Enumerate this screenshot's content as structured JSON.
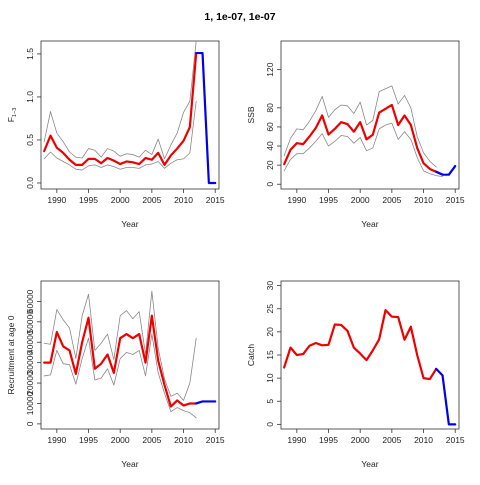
{
  "page": {
    "title": "1, 1e-07, 1e-07"
  },
  "colors": {
    "fit": "#ee0000",
    "projection": "#0000ee",
    "bounds": "#888888",
    "axis": "#333333"
  },
  "chart_data": [
    {
      "id": "fbar",
      "type": "line",
      "title": "",
      "xlabel": "Year",
      "ylabel": "F",
      "ylabel_subscript": "1−3",
      "xlim": [
        1987.5,
        2015.6
      ],
      "ylim": [
        -0.07,
        1.65
      ],
      "xticks": [
        1990,
        1995,
        2000,
        2005,
        2010,
        2015
      ],
      "yticks": [
        0.0,
        0.5,
        1.0,
        1.5
      ],
      "ytick_labels": [
        "0.0",
        "0.5",
        "1.0",
        "1.5"
      ],
      "grid": false,
      "series": [
        {
          "role": "upper",
          "x": [
            1988,
            1989,
            1990,
            1991,
            1992,
            1993,
            1994,
            1995,
            1996,
            1997,
            1998,
            1999,
            2000,
            2001,
            2002,
            2003,
            2004,
            2005,
            2006,
            2007,
            2008,
            2009,
            2010,
            2011,
            2012
          ],
          "values": [
            0.48,
            0.83,
            0.58,
            0.48,
            0.36,
            0.3,
            0.29,
            0.4,
            0.38,
            0.3,
            0.4,
            0.37,
            0.31,
            0.34,
            0.33,
            0.3,
            0.38,
            0.33,
            0.51,
            0.28,
            0.44,
            0.58,
            0.82,
            0.95,
            1.65
          ]
        },
        {
          "role": "lower",
          "x": [
            1988,
            1989,
            1990,
            1991,
            1992,
            1993,
            1994,
            1995,
            1996,
            1997,
            1998,
            1999,
            2000,
            2001,
            2002,
            2003,
            2004,
            2005,
            2006,
            2007,
            2008,
            2009,
            2010,
            2011,
            2012
          ],
          "values": [
            0.28,
            0.36,
            0.29,
            0.25,
            0.21,
            0.16,
            0.15,
            0.2,
            0.21,
            0.18,
            0.21,
            0.19,
            0.16,
            0.18,
            0.18,
            0.17,
            0.21,
            0.22,
            0.25,
            0.17,
            0.23,
            0.27,
            0.28,
            0.35,
            0.95
          ]
        },
        {
          "role": "estimate",
          "x": [
            1988,
            1989,
            1990,
            1991,
            1992,
            1993,
            1994,
            1995,
            1996,
            1997,
            1998,
            1999,
            2000,
            2001,
            2002,
            2003,
            2004,
            2005,
            2006,
            2007,
            2008,
            2009,
            2010,
            2011,
            2012
          ],
          "values": [
            0.37,
            0.55,
            0.41,
            0.35,
            0.27,
            0.21,
            0.21,
            0.28,
            0.28,
            0.23,
            0.29,
            0.26,
            0.22,
            0.25,
            0.24,
            0.22,
            0.29,
            0.27,
            0.35,
            0.21,
            0.32,
            0.4,
            0.49,
            0.65,
            1.51
          ]
        },
        {
          "role": "projection",
          "x": [
            2012,
            2013,
            2014,
            2015
          ],
          "values": [
            1.51,
            1.51,
            0.0,
            0.0
          ]
        }
      ]
    },
    {
      "id": "ssb",
      "type": "line",
      "title": "",
      "xlabel": "Year",
      "ylabel": "SSB",
      "ylabel_subscript": "",
      "xlim": [
        1987.5,
        2015.6
      ],
      "ylim": [
        -5,
        150
      ],
      "xticks": [
        1990,
        1995,
        2000,
        2005,
        2010,
        2015
      ],
      "yticks": [
        0,
        20,
        40,
        60,
        80,
        120
      ],
      "ytick_labels": [
        "0",
        "20",
        "40",
        "60",
        "80",
        "120"
      ],
      "grid": false,
      "series": [
        {
          "role": "upper",
          "x": [
            1988,
            1989,
            1990,
            1991,
            1992,
            1993,
            1994,
            1995,
            1996,
            1997,
            1998,
            1999,
            2000,
            2001,
            2002,
            2003,
            2004,
            2005,
            2006,
            2007,
            2008,
            2009,
            2010,
            2011,
            2012
          ],
          "values": [
            30,
            48,
            58,
            57,
            66,
            77,
            92,
            70,
            78,
            83,
            82,
            74,
            86,
            62,
            67,
            97,
            100,
            103,
            84,
            93,
            80,
            50,
            33,
            24,
            18
          ]
        },
        {
          "role": "lower",
          "x": [
            1988,
            1989,
            1990,
            1991,
            1992,
            1993,
            1994,
            1995,
            1996,
            1997,
            1998,
            1999,
            2000,
            2001,
            2002,
            2003,
            2004,
            2005,
            2006,
            2007,
            2008,
            2009,
            2010,
            2011,
            2012,
            2013
          ],
          "values": [
            14,
            26,
            32,
            32,
            38,
            45,
            53,
            40,
            45,
            51,
            50,
            43,
            49,
            35,
            38,
            58,
            62,
            64,
            47,
            55,
            47,
            28,
            14,
            11,
            9,
            8
          ]
        },
        {
          "role": "estimate",
          "x": [
            1988,
            1989,
            1990,
            1991,
            1992,
            1993,
            1994,
            1995,
            1996,
            1997,
            1998,
            1999,
            2000,
            2001,
            2002,
            2003,
            2004,
            2005,
            2006,
            2007,
            2008,
            2009,
            2010,
            2011,
            2012,
            2013
          ],
          "values": [
            21,
            36,
            43,
            42,
            50,
            59,
            72,
            52,
            58,
            65,
            63,
            55,
            65,
            47,
            52,
            75,
            79,
            83,
            62,
            72,
            62,
            38,
            22,
            16,
            13,
            10
          ]
        },
        {
          "role": "projection",
          "x": [
            2012,
            2013,
            2014,
            2015
          ],
          "values": [
            13,
            10,
            10,
            19
          ]
        }
      ]
    },
    {
      "id": "recruitment",
      "type": "line",
      "title": "",
      "xlabel": "Year",
      "ylabel": "Recruitment at age 0",
      "ylabel_subscript": "",
      "xlim": [
        1987.5,
        2015.6
      ],
      "ylim": [
        -2500,
        70000
      ],
      "xticks": [
        1990,
        1995,
        2000,
        2005,
        2010,
        2015
      ],
      "yticks": [
        0,
        10000,
        20000,
        30000,
        40000,
        50000,
        60000
      ],
      "ytick_labels": [
        "0",
        "10000",
        "20000",
        "30000",
        "40000",
        "50000",
        "60000"
      ],
      "grid": false,
      "series": [
        {
          "role": "upper",
          "x": [
            1988,
            1989,
            1990,
            1991,
            1992,
            1993,
            1994,
            1995,
            1996,
            1997,
            1998,
            1999,
            2000,
            2001,
            2002,
            2003,
            2004,
            2005,
            2006,
            2007,
            2008,
            2009,
            2010,
            2011,
            2012
          ],
          "values": [
            39500,
            39000,
            56000,
            51000,
            47000,
            32000,
            53000,
            63500,
            36000,
            39500,
            44000,
            31500,
            53000,
            55500,
            51500,
            55000,
            34000,
            65000,
            37000,
            22000,
            13500,
            15000,
            11500,
            20000,
            42000
          ]
        },
        {
          "role": "lower",
          "x": [
            1988,
            1989,
            1990,
            1991,
            1992,
            1993,
            1994,
            1995,
            1996,
            1997,
            1998,
            1999,
            2000,
            2001,
            2002,
            2003,
            2004,
            2005,
            2006,
            2007,
            2008,
            2009,
            2010,
            2011,
            2012
          ],
          "values": [
            23500,
            24000,
            36000,
            29500,
            29000,
            19500,
            32000,
            42000,
            21500,
            22500,
            27000,
            19000,
            32000,
            35000,
            34000,
            36000,
            23500,
            44000,
            25000,
            15000,
            6000,
            8000,
            6500,
            5500,
            3000
          ]
        },
        {
          "role": "estimate",
          "x": [
            1988,
            1989,
            1990,
            1991,
            1992,
            1993,
            1994,
            1995,
            1996,
            1997,
            1998,
            1999,
            2000,
            2001,
            2002,
            2003,
            2004,
            2005,
            2006,
            2007,
            2008,
            2009,
            2010,
            2011,
            2012
          ],
          "values": [
            30000,
            30000,
            45000,
            38000,
            36000,
            24500,
            40000,
            52000,
            27000,
            29500,
            34000,
            25000,
            42000,
            44000,
            42000,
            44000,
            30000,
            53000,
            31000,
            19000,
            8500,
            11500,
            9000,
            10000,
            10000
          ]
        },
        {
          "role": "projection",
          "x": [
            2012,
            2013,
            2014,
            2015
          ],
          "values": [
            10000,
            11000,
            11000,
            11000
          ]
        }
      ]
    },
    {
      "id": "catch",
      "type": "line",
      "title": "",
      "xlabel": "Year",
      "ylabel": "Catch",
      "ylabel_subscript": "",
      "xlim": [
        1987.5,
        2015.6
      ],
      "ylim": [
        -1,
        31
      ],
      "xticks": [
        1990,
        1995,
        2000,
        2005,
        2010,
        2015
      ],
      "yticks": [
        0,
        5,
        10,
        15,
        20,
        25,
        30
      ],
      "ytick_labels": [
        "0",
        "5",
        "10",
        "15",
        "20",
        "25",
        "30"
      ],
      "grid": false,
      "series": [
        {
          "role": "observed",
          "x": [
            1988,
            1989,
            1990,
            1991,
            1992,
            1993,
            1994,
            1995,
            1996,
            1997,
            1998,
            1999,
            2000,
            2001,
            2002,
            2003,
            2004,
            2005,
            2006,
            2007,
            2008,
            2009,
            2010,
            2011,
            2012
          ],
          "values": [
            12.3,
            16.6,
            15.0,
            15.2,
            17.0,
            17.6,
            17.1,
            17.2,
            21.6,
            21.5,
            20.2,
            16.6,
            15.3,
            13.9,
            16.0,
            18.4,
            24.7,
            23.3,
            23.2,
            18.3,
            21.1,
            15.0,
            10.0,
            9.8,
            12.0
          ]
        },
        {
          "role": "projection",
          "x": [
            2012,
            2013,
            2014,
            2015
          ],
          "values": [
            12.0,
            10.6,
            0.0,
            0.0
          ]
        }
      ]
    }
  ]
}
